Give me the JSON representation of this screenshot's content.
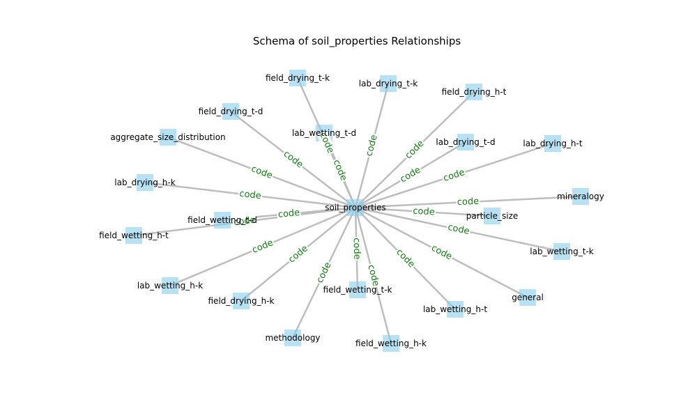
{
  "title": "Schema of soil_properties Relationships",
  "colors": {
    "node_fill": "#87ceeb",
    "edge": "#bdbdbd",
    "edge_label": "#118011",
    "text": "#000000"
  },
  "center": {
    "label": "soil_properties"
  },
  "nodes": [
    {
      "id": "field_drying_t-k",
      "label": "field_drying_t-k",
      "edge_label": "code"
    },
    {
      "id": "lab_drying_t-k",
      "label": "lab_drying_t-k",
      "edge_label": "code"
    },
    {
      "id": "field_drying_h-t",
      "label": "field_drying_h-t",
      "edge_label": "code"
    },
    {
      "id": "field_drying_t-d",
      "label": "field_drying_t-d",
      "edge_label": "code"
    },
    {
      "id": "lab_wetting_t-d",
      "label": "lab_wetting_t-d",
      "edge_label": "code"
    },
    {
      "id": "lab_drying_t-d",
      "label": "lab_drying_t-d",
      "edge_label": "code"
    },
    {
      "id": "lab_drying_h-t",
      "label": "lab_drying_h-t",
      "edge_label": "code"
    },
    {
      "id": "aggregate_size_distribution",
      "label": "aggregate_size_distribution",
      "edge_label": "code"
    },
    {
      "id": "lab_drying_h-k",
      "label": "lab_drying_h-k",
      "edge_label": "code"
    },
    {
      "id": "mineralogy",
      "label": "mineralogy",
      "edge_label": "code"
    },
    {
      "id": "particle_size",
      "label": "particle_size",
      "edge_label": "code"
    },
    {
      "id": "field_wetting_t-d",
      "label": "field_wetting_t-d",
      "edge_label": "code"
    },
    {
      "id": "field_wetting_h-t",
      "label": "field_wetting_h-t",
      "edge_label": "code"
    },
    {
      "id": "lab_wetting_t-k",
      "label": "lab_wetting_t-k",
      "edge_label": "code"
    },
    {
      "id": "lab_wetting_h-k",
      "label": "lab_wetting_h-k",
      "edge_label": "code"
    },
    {
      "id": "field_drying_h-k",
      "label": "field_drying_h-k",
      "edge_label": "code"
    },
    {
      "id": "field_wetting_t-k",
      "label": "field_wetting_t-k",
      "edge_label": "code"
    },
    {
      "id": "lab_wetting_h-t",
      "label": "lab_wetting_h-t",
      "edge_label": "code"
    },
    {
      "id": "general",
      "label": "general",
      "edge_label": "code"
    },
    {
      "id": "methodology",
      "label": "methodology",
      "edge_label": "code"
    },
    {
      "id": "field_wetting_h-k",
      "label": "field_wetting_h-k",
      "edge_label": "code"
    }
  ]
}
